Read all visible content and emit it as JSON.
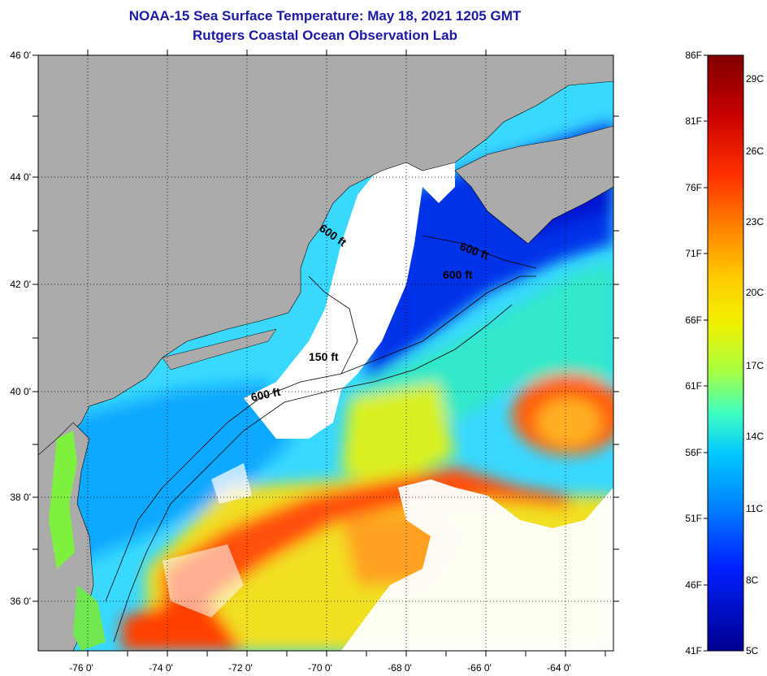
{
  "title": "NOAA-15 Sea Surface Temperature:  May 18, 2021 1205 GMT",
  "subtitle": "Rutgers Coastal Ocean Observation Lab",
  "lat_labels": [
    "46 0'",
    "44 0'",
    "42 0'",
    "40 0'",
    "38 0'",
    "36 0'"
  ],
  "lon_labels": [
    "-76 0'",
    "-74 0'",
    "-72 0'",
    "-70 0'",
    "-68 0'",
    "-66 0'",
    "-64 0'"
  ],
  "contour_labels": [
    "600 ft",
    "600 ft",
    "600 ft",
    "150 ft",
    "600 ft"
  ],
  "colorbar": {
    "f_labels": [
      "86F",
      "81F",
      "76F",
      "71F",
      "66F",
      "61F",
      "56F",
      "51F",
      "46F",
      "41F"
    ],
    "c_labels": [
      "29C",
      "26C",
      "23C",
      "20C",
      "17C",
      "14C",
      "11C",
      "8C",
      "5C"
    ],
    "colors": [
      "#7f0000",
      "#c80000",
      "#ff3000",
      "#ff8c00",
      "#ffd000",
      "#f0f000",
      "#a8ff40",
      "#40ffc0",
      "#00c8ff",
      "#0080ff",
      "#0020ff",
      "#00008f"
    ]
  },
  "colors": {
    "land": "#ababab",
    "clouds": "#ffffff",
    "title": "#1a1aa6"
  }
}
